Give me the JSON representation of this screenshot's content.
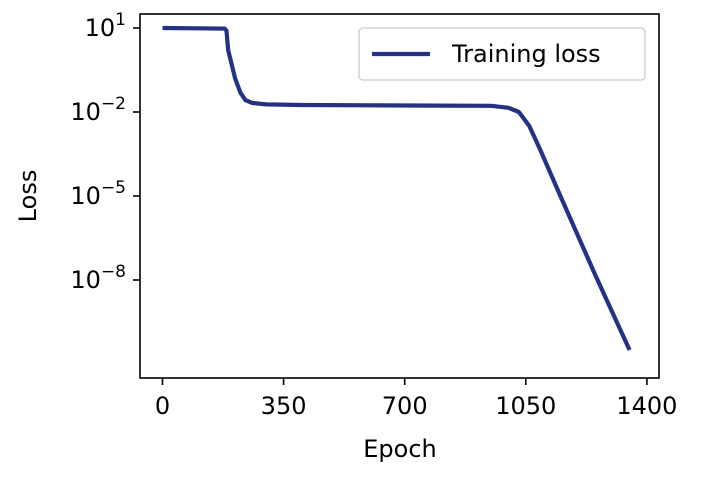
{
  "chart_data": {
    "type": "line",
    "xlabel": "Epoch",
    "ylabel": "Loss",
    "yscale": "log",
    "xlim": [
      -65,
      1435
    ],
    "ylim_log10": [
      -11.5,
      1.5
    ],
    "xticks": [
      {
        "value": 0,
        "label": "0"
      },
      {
        "value": 350,
        "label": "350"
      },
      {
        "value": 700,
        "label": "700"
      },
      {
        "value": 1050,
        "label": "1050"
      },
      {
        "value": 1400,
        "label": "1400"
      }
    ],
    "yticks": [
      {
        "log10": 1,
        "base": "10",
        "exp": "1"
      },
      {
        "log10": -2,
        "base": "10",
        "exp": "−2"
      },
      {
        "log10": -5,
        "base": "10",
        "exp": "−5"
      },
      {
        "log10": -8,
        "base": "10",
        "exp": "−8"
      }
    ],
    "grid": false,
    "legend": {
      "position": "top-right"
    },
    "series": [
      {
        "name": "Training loss",
        "color": "#253185",
        "points": [
          {
            "x": 0,
            "log10": 1.0
          },
          {
            "x": 100,
            "log10": 0.99
          },
          {
            "x": 180,
            "log10": 0.98
          },
          {
            "x": 185,
            "log10": 0.9
          },
          {
            "x": 190,
            "log10": 0.2
          },
          {
            "x": 200,
            "log10": -0.3
          },
          {
            "x": 210,
            "log10": -0.8
          },
          {
            "x": 225,
            "log10": -1.3
          },
          {
            "x": 240,
            "log10": -1.58
          },
          {
            "x": 260,
            "log10": -1.68
          },
          {
            "x": 300,
            "log10": -1.73
          },
          {
            "x": 400,
            "log10": -1.75
          },
          {
            "x": 600,
            "log10": -1.76
          },
          {
            "x": 800,
            "log10": -1.77
          },
          {
            "x": 950,
            "log10": -1.78
          },
          {
            "x": 1000,
            "log10": -1.85
          },
          {
            "x": 1030,
            "log10": -2.0
          },
          {
            "x": 1060,
            "log10": -2.5
          },
          {
            "x": 1090,
            "log10": -3.3
          },
          {
            "x": 1150,
            "log10": -5.0
          },
          {
            "x": 1250,
            "log10": -7.8
          },
          {
            "x": 1300,
            "log10": -9.15
          },
          {
            "x": 1350,
            "log10": -10.5
          }
        ]
      }
    ]
  }
}
